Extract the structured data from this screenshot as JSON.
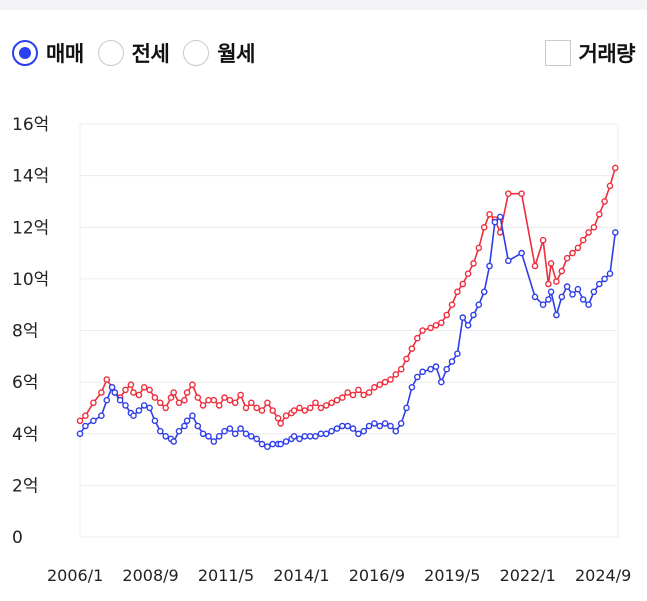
{
  "controls": {
    "radios": [
      {
        "label": "매매",
        "selected": true
      },
      {
        "label": "전세",
        "selected": false
      },
      {
        "label": "월세",
        "selected": false
      }
    ],
    "volume_checkbox": {
      "label": "거래량",
      "checked": false
    }
  },
  "colors": {
    "sale": "#ee2e3c",
    "jeonse": "#2f3ee8",
    "accent": "#2b3ff0",
    "grid": "#ececec"
  },
  "chart_data": {
    "type": "line",
    "x_tick_labels": [
      "2006/1",
      "2008/9",
      "2011/5",
      "2014/1",
      "2016/9",
      "2019/5",
      "2022/1",
      "2024/9"
    ],
    "x_range": [
      2006.0,
      2026.1
    ],
    "y_tick_labels": [
      "0",
      "2억",
      "4억",
      "6억",
      "8억",
      "10억",
      "12억",
      "14억",
      "16억"
    ],
    "y_range": [
      0,
      16
    ],
    "series": [
      {
        "key": "sale",
        "color": "#ee2e3c",
        "x": [
          2006.0,
          2006.2,
          2006.5,
          2006.8,
          2007.0,
          2007.2,
          2007.3,
          2007.5,
          2007.7,
          2007.9,
          2008.0,
          2008.2,
          2008.4,
          2008.6,
          2008.8,
          2009.0,
          2009.2,
          2009.4,
          2009.5,
          2009.7,
          2009.9,
          2010.0,
          2010.2,
          2010.4,
          2010.6,
          2010.8,
          2011.0,
          2011.2,
          2011.4,
          2011.6,
          2011.8,
          2012.0,
          2012.2,
          2012.4,
          2012.6,
          2012.8,
          2013.0,
          2013.2,
          2013.4,
          2013.5,
          2013.7,
          2013.9,
          2014.0,
          2014.2,
          2014.4,
          2014.6,
          2014.8,
          2015.0,
          2015.2,
          2015.4,
          2015.6,
          2015.8,
          2016.0,
          2016.2,
          2016.4,
          2016.6,
          2016.8,
          2017.0,
          2017.2,
          2017.4,
          2017.6,
          2017.8,
          2018.0,
          2018.2,
          2018.4,
          2018.6,
          2018.8,
          2019.1,
          2019.3,
          2019.5,
          2019.7,
          2019.9,
          2020.1,
          2020.3,
          2020.5,
          2020.7,
          2020.9,
          2021.1,
          2021.3,
          2021.5,
          2021.7,
          2022.0,
          2022.5,
          2023.0,
          2023.3,
          2023.5,
          2023.6,
          2023.8,
          2024.0,
          2024.2,
          2024.4,
          2024.6,
          2024.8,
          2025.0,
          2025.2,
          2025.4,
          2025.6,
          2025.8,
          2026.0
        ],
        "y": [
          4.5,
          4.7,
          5.2,
          5.6,
          6.1,
          5.8,
          5.6,
          5.4,
          5.7,
          5.9,
          5.6,
          5.5,
          5.8,
          5.7,
          5.4,
          5.2,
          5.0,
          5.4,
          5.6,
          5.2,
          5.3,
          5.6,
          5.9,
          5.4,
          5.1,
          5.3,
          5.3,
          5.1,
          5.4,
          5.3,
          5.2,
          5.5,
          5.0,
          5.2,
          5.0,
          4.9,
          5.2,
          4.9,
          4.6,
          4.4,
          4.7,
          4.8,
          4.9,
          5.0,
          4.9,
          5.0,
          5.2,
          5.0,
          5.1,
          5.2,
          5.3,
          5.4,
          5.6,
          5.5,
          5.7,
          5.5,
          5.6,
          5.8,
          5.9,
          6.0,
          6.1,
          6.3,
          6.5,
          6.9,
          7.3,
          7.7,
          8.0,
          8.1,
          8.2,
          8.3,
          8.6,
          9.0,
          9.5,
          9.8,
          10.2,
          10.6,
          11.2,
          12.0,
          12.5,
          12.3,
          11.8,
          13.3,
          13.3,
          10.5,
          11.5,
          9.8,
          10.6,
          9.9,
          10.3,
          10.8,
          11.0,
          11.2,
          11.5,
          11.8,
          12.0,
          12.5,
          13.0,
          13.6,
          14.3
        ]
      },
      {
        "key": "jeonse",
        "color": "#2f3ee8",
        "x": [
          2006.0,
          2006.2,
          2006.5,
          2006.8,
          2007.0,
          2007.2,
          2007.3,
          2007.5,
          2007.7,
          2007.9,
          2008.0,
          2008.2,
          2008.4,
          2008.6,
          2008.8,
          2009.0,
          2009.2,
          2009.4,
          2009.5,
          2009.7,
          2009.9,
          2010.0,
          2010.2,
          2010.4,
          2010.6,
          2010.8,
          2011.0,
          2011.2,
          2011.4,
          2011.6,
          2011.8,
          2012.0,
          2012.2,
          2012.4,
          2012.6,
          2012.8,
          2013.0,
          2013.2,
          2013.4,
          2013.5,
          2013.7,
          2013.9,
          2014.0,
          2014.2,
          2014.4,
          2014.6,
          2014.8,
          2015.0,
          2015.2,
          2015.4,
          2015.6,
          2015.8,
          2016.0,
          2016.2,
          2016.4,
          2016.6,
          2016.8,
          2017.0,
          2017.2,
          2017.4,
          2017.6,
          2017.8,
          2018.0,
          2018.2,
          2018.4,
          2018.6,
          2018.8,
          2019.1,
          2019.3,
          2019.5,
          2019.7,
          2019.9,
          2020.1,
          2020.3,
          2020.5,
          2020.7,
          2020.9,
          2021.1,
          2021.3,
          2021.5,
          2021.7,
          2022.0,
          2022.5,
          2023.0,
          2023.3,
          2023.5,
          2023.6,
          2023.8,
          2024.0,
          2024.2,
          2024.4,
          2024.6,
          2024.8,
          2025.0,
          2025.2,
          2025.4,
          2025.6,
          2025.8,
          2026.0
        ],
        "y": [
          4.0,
          4.3,
          4.5,
          4.7,
          5.3,
          5.8,
          5.6,
          5.3,
          5.1,
          4.8,
          4.7,
          4.9,
          5.1,
          5.0,
          4.5,
          4.1,
          3.9,
          3.8,
          3.7,
          4.1,
          4.3,
          4.5,
          4.7,
          4.3,
          4.0,
          3.9,
          3.7,
          3.9,
          4.1,
          4.2,
          4.0,
          4.2,
          4.0,
          3.9,
          3.8,
          3.6,
          3.5,
          3.6,
          3.6,
          3.6,
          3.7,
          3.8,
          3.9,
          3.8,
          3.9,
          3.9,
          3.9,
          4.0,
          4.0,
          4.1,
          4.2,
          4.3,
          4.3,
          4.2,
          4.0,
          4.1,
          4.3,
          4.4,
          4.3,
          4.4,
          4.3,
          4.1,
          4.4,
          5.0,
          5.8,
          6.2,
          6.4,
          6.5,
          6.6,
          6.0,
          6.5,
          6.8,
          7.1,
          8.5,
          8.2,
          8.6,
          9.0,
          9.5,
          10.5,
          12.2,
          12.4,
          10.7,
          11.0,
          9.3,
          9.0,
          9.2,
          9.5,
          8.6,
          9.3,
          9.7,
          9.4,
          9.6,
          9.2,
          9.0,
          9.5,
          9.8,
          10.0,
          10.2,
          11.8
        ]
      }
    ],
    "grid": true,
    "legend": "none"
  }
}
